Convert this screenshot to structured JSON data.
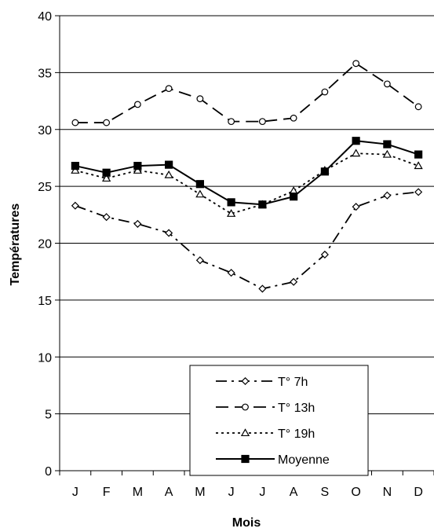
{
  "chart_data": {
    "type": "line",
    "title": "",
    "xlabel": "Mois",
    "ylabel": "Températures",
    "categories": [
      "J",
      "F",
      "M",
      "A",
      "M",
      "J",
      "J",
      "A",
      "S",
      "O",
      "N",
      "D"
    ],
    "ylim": [
      0,
      40
    ],
    "yticks": [
      0,
      5,
      10,
      15,
      20,
      25,
      30,
      35,
      40
    ],
    "grid": "horizontal",
    "legend_position": "bottom-center",
    "series": [
      {
        "name": "T° 7h",
        "values": [
          23.3,
          22.3,
          21.7,
          20.9,
          18.5,
          17.4,
          16.0,
          16.6,
          19.0,
          23.2,
          24.2,
          24.5
        ],
        "line_style": "dash-dot",
        "marker": "diamond-open",
        "color": "#000000"
      },
      {
        "name": "T° 13h",
        "values": [
          30.6,
          30.6,
          32.2,
          33.6,
          32.7,
          30.7,
          30.7,
          31.0,
          33.3,
          35.8,
          34.0,
          32.0
        ],
        "line_style": "long-dash",
        "marker": "circle-open",
        "color": "#000000"
      },
      {
        "name": "T° 19h",
        "values": [
          26.4,
          25.7,
          26.4,
          26.0,
          24.3,
          22.6,
          23.4,
          24.6,
          26.4,
          27.9,
          27.8,
          26.8
        ],
        "line_style": "dotted",
        "marker": "triangle-open",
        "color": "#000000"
      },
      {
        "name": "Moyenne",
        "values": [
          26.8,
          26.2,
          26.8,
          26.9,
          25.2,
          23.6,
          23.4,
          24.1,
          26.3,
          29.0,
          28.7,
          27.8
        ],
        "line_style": "solid",
        "marker": "square-filled",
        "color": "#000000"
      }
    ]
  }
}
